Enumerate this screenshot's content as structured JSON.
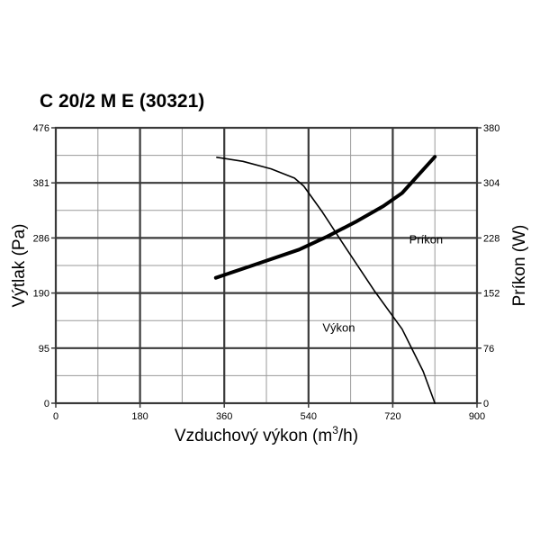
{
  "chart_data": {
    "type": "line",
    "title": "C 20/2 M E (30321)",
    "xlabel": "Vzduchový výkon (m³/h)",
    "xlabel_main": "Vzduchový výkon (m",
    "xlabel_sup": "3",
    "xlabel_end": "/h)",
    "ylabel_left": "Výtlak (Pa)",
    "ylabel_right": "Príkon (W)",
    "xlim": [
      0,
      900
    ],
    "ylim_left": [
      0,
      476
    ],
    "ylim_right": [
      0,
      380
    ],
    "x_ticks": [
      "0",
      "180",
      "360",
      "540",
      "720",
      "900"
    ],
    "y_left_ticks": [
      "0",
      "95",
      "190",
      "286",
      "381",
      "476"
    ],
    "y_right_ticks": [
      "0",
      "76",
      "152",
      "228",
      "304",
      "380"
    ],
    "grid": true,
    "series": [
      {
        "name": "Výkon",
        "axis": "left",
        "color": "#000000",
        "weight": "thin",
        "x": [
          344,
          400,
          460,
          510,
          530,
          570,
          620,
          680,
          740,
          785,
          810
        ],
        "y": [
          425,
          418,
          405,
          389,
          375,
          330,
          268,
          195,
          128,
          55,
          0
        ]
      },
      {
        "name": "Príkon",
        "axis": "right",
        "color": "#000000",
        "weight": "thick",
        "x": [
          342,
          420,
          520,
          580,
          640,
          700,
          740,
          775,
          810
        ],
        "y": [
          173,
          190,
          212,
          230,
          250,
          272,
          290,
          315,
          340
        ]
      }
    ],
    "annotations": [
      {
        "text": "Príkon",
        "x": 755,
        "y_left": 276
      },
      {
        "text": "Výkon",
        "x": 570,
        "y_left": 124
      }
    ]
  }
}
